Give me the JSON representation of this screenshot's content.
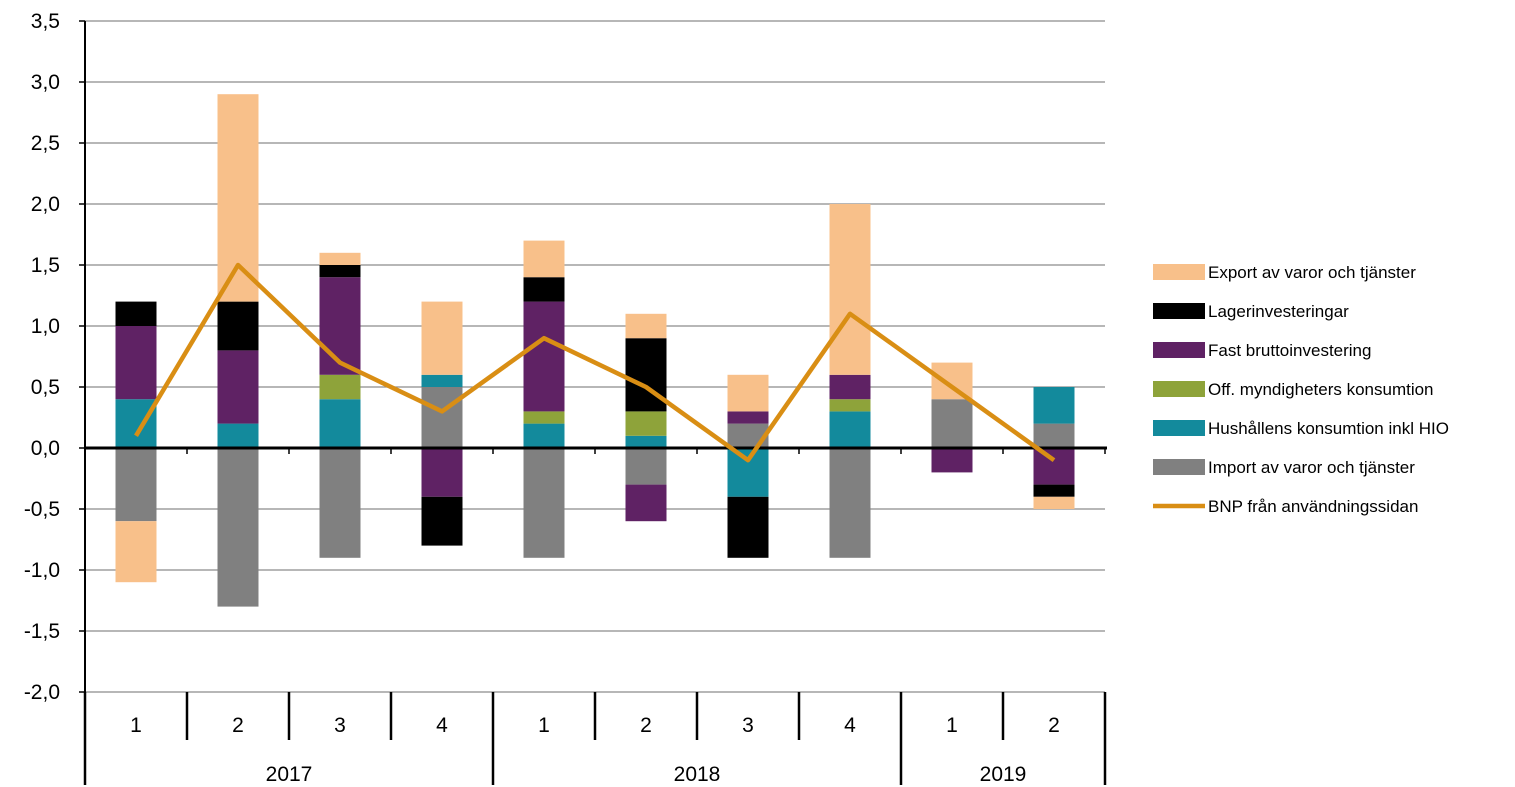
{
  "chart_data": {
    "type": "bar",
    "stacked": true,
    "title": "",
    "xlabel": "",
    "ylabel": "",
    "ylim": [
      -2.0,
      3.5
    ],
    "y_ticks": [
      "-2,0",
      "-1,5",
      "-1,0",
      "-0,5",
      "0,0",
      "0,5",
      "1,0",
      "1,5",
      "2,0",
      "2,5",
      "3,0",
      "3,5"
    ],
    "grid": true,
    "legend_position": "right",
    "categories": [
      "1",
      "2",
      "3",
      "4",
      "1",
      "2",
      "3",
      "4",
      "1",
      "2"
    ],
    "category_groups": [
      {
        "label": "2017",
        "count": 4
      },
      {
        "label": "2018",
        "count": 4
      },
      {
        "label": "2019",
        "count": 2
      }
    ],
    "series": [
      {
        "name": "Import av varor och tjänster",
        "color": "#808080",
        "kind": "bar",
        "values": [
          -0.6,
          -1.3,
          -0.9,
          0.5,
          -0.9,
          -0.3,
          0.2,
          -0.9,
          0.4,
          0.2
        ]
      },
      {
        "name": "Hushållens konsumtion inkl HIO",
        "color": "#138a9c",
        "kind": "bar",
        "values": [
          0.4,
          0.2,
          0.4,
          0.1,
          0.2,
          0.1,
          -0.4,
          0.3,
          0.0,
          0.3
        ]
      },
      {
        "name": "Off. myndigheters konsumtion",
        "color": "#8ea33a",
        "kind": "bar",
        "values": [
          0.0,
          0.0,
          0.2,
          0.0,
          0.1,
          0.2,
          0.0,
          0.1,
          0.0,
          0.0
        ]
      },
      {
        "name": "Fast bruttoinvestering",
        "color": "#5f2264",
        "kind": "bar",
        "values": [
          0.6,
          0.6,
          0.8,
          -0.4,
          0.9,
          -0.3,
          0.1,
          0.2,
          -0.2,
          -0.3
        ]
      },
      {
        "name": "Lagerinvesteringar",
        "color": "#000000",
        "kind": "bar",
        "values": [
          0.2,
          0.4,
          0.1,
          -0.4,
          0.2,
          0.6,
          -0.5,
          0.0,
          0.0,
          -0.1
        ]
      },
      {
        "name": "Export av varor och tjänster",
        "color": "#f8c08a",
        "kind": "bar",
        "values": [
          -0.5,
          1.7,
          0.1,
          0.6,
          0.3,
          0.2,
          0.3,
          1.4,
          0.3,
          -0.1
        ]
      },
      {
        "name": "BNP från användningssidan",
        "color": "#d98e14",
        "kind": "line",
        "values": [
          0.1,
          1.5,
          0.7,
          0.3,
          0.9,
          0.5,
          -0.1,
          1.1,
          0.5,
          -0.1
        ]
      }
    ],
    "legend_order": [
      "Export av varor och tjänster",
      "Lagerinvesteringar",
      "Fast bruttoinvestering",
      "Off. myndigheters konsumtion",
      "Hushållens konsumtion inkl HIO",
      "Import av varor och tjänster",
      "BNP från användningssidan"
    ]
  }
}
